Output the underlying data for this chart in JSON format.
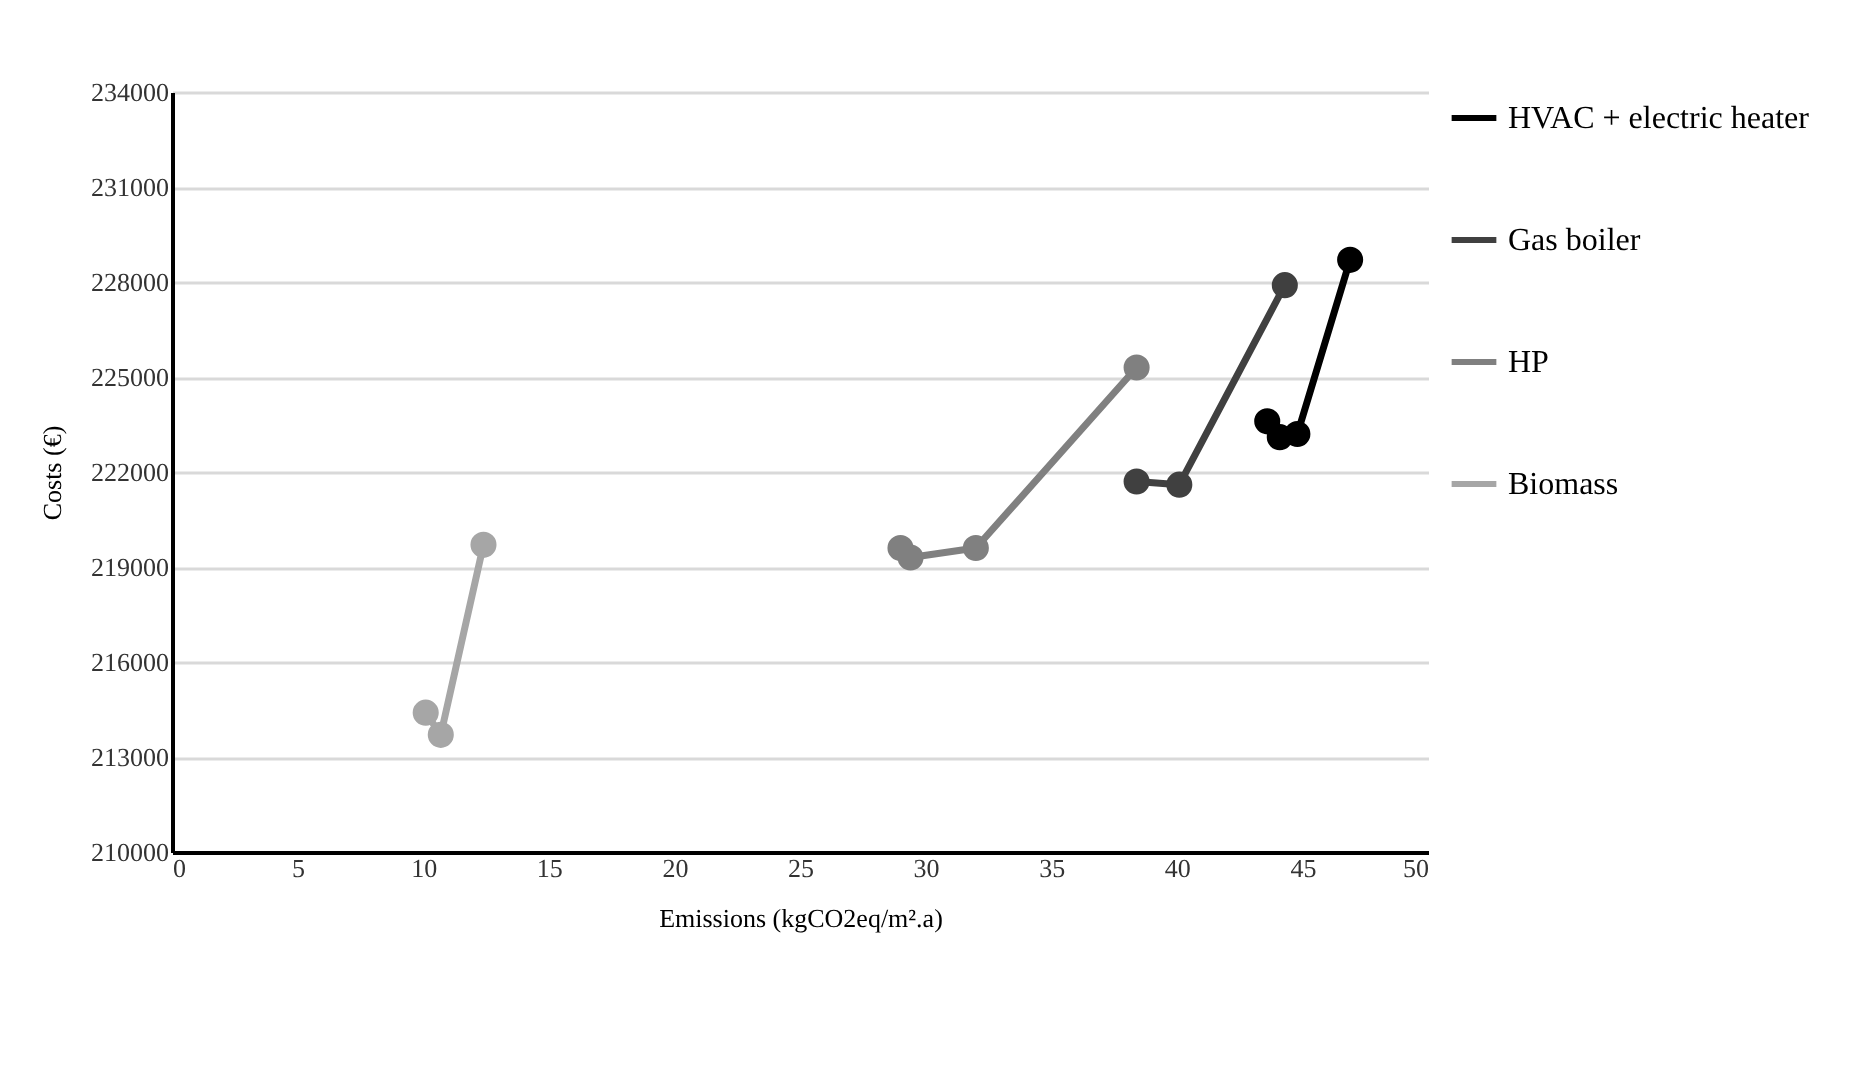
{
  "chart_data": {
    "type": "line",
    "xlabel": "Emissions (kgCO2eq/m².a)",
    "ylabel": "Costs (€)",
    "xlim": [
      0,
      50
    ],
    "xticks": [
      0,
      5,
      10,
      15,
      20,
      25,
      30,
      35,
      40,
      45,
      50
    ],
    "ylim": [
      210000,
      234000
    ],
    "yticks": [
      210000,
      213000,
      216000,
      219000,
      222000,
      225000,
      228000,
      231000,
      234000
    ],
    "grid": "y",
    "legend": "right",
    "marker": "circle",
    "line_style": "solid",
    "series": [
      {
        "name": "HVAC + electric heater",
        "color": "#000000",
        "x": [
          43.6,
          44.1,
          44.8,
          46.9
        ],
        "values": [
          223600,
          223100,
          223200,
          228700
        ]
      },
      {
        "name": "Gas boiler",
        "color": "#404040",
        "x": [
          38.4,
          40.1,
          44.3
        ],
        "values": [
          221700,
          221600,
          227900
        ]
      },
      {
        "name": "HP",
        "color": "#808080",
        "x": [
          29.0,
          29.4,
          32.0,
          38.4
        ],
        "values": [
          219600,
          219300,
          219600,
          225300
        ]
      },
      {
        "name": "Biomass",
        "color": "#a6a6a6",
        "x": [
          10.1,
          10.7,
          12.4
        ],
        "values": [
          214400,
          213700,
          219700
        ]
      }
    ]
  }
}
